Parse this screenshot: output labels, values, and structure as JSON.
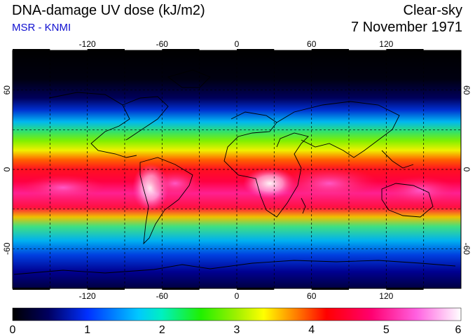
{
  "header": {
    "title": "DNA-damage UV dose (kJ/m2)",
    "subtitle": "MSR - KNMI",
    "condition": "Clear-sky",
    "date": "7 November 1971"
  },
  "colors": {
    "subtitle": "#1010d0"
  },
  "map": {
    "lon_ticks": [
      "-120",
      "-60",
      "0",
      "60",
      "120"
    ],
    "lat_ticks": [
      "60",
      "0",
      "-60"
    ],
    "gridlines": "dashed 30°"
  },
  "colorbar": {
    "ticks": [
      "0",
      "1",
      "2",
      "3",
      "4",
      "5",
      "6"
    ],
    "range": [
      0,
      6
    ]
  }
}
